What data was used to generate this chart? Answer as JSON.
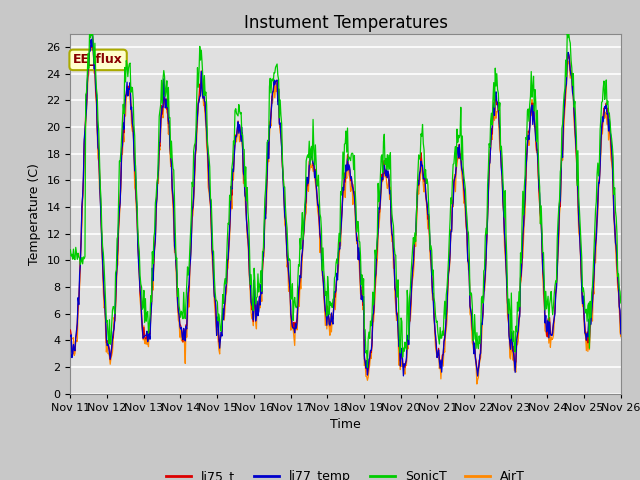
{
  "title": "Instument Temperatures",
  "ylabel": "Temperature (C)",
  "xlabel": "Time",
  "annotation_text": "EE_flux",
  "annotation_bg": "#ffffcc",
  "annotation_border": "#aaaa00",
  "annotation_text_color": "#880000",
  "series": [
    "li75_t",
    "li77_temp",
    "SonicT",
    "AirT"
  ],
  "series_colors": [
    "#dd0000",
    "#0000cc",
    "#00cc00",
    "#ff8800"
  ],
  "ylim": [
    0,
    27
  ],
  "x_tick_labels": [
    "Nov 11",
    "Nov 12",
    "Nov 13",
    "Nov 14",
    "Nov 15",
    "Nov 16",
    "Nov 17",
    "Nov 18",
    "Nov 19",
    "Nov 20",
    "Nov 21",
    "Nov 22",
    "Nov 23",
    "Nov 24",
    "Nov 25",
    "Nov 26"
  ],
  "fig_bg": "#c8c8c8",
  "plot_bg": "#e0e0e0",
  "grid_color": "#ffffff",
  "title_fontsize": 12,
  "axis_fontsize": 9,
  "tick_fontsize": 8,
  "legend_fontsize": 9
}
